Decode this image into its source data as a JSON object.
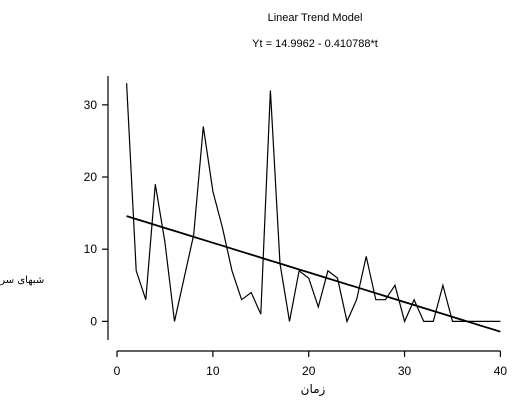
{
  "chart_data": {
    "type": "line",
    "title": "Linear Trend Model",
    "subtitle": "Yt = 14.9962 - 0.410788*t",
    "xlabel": "زمان",
    "ylabel": "شبهای سرد",
    "xlim": [
      0,
      41
    ],
    "ylim": [
      -3,
      34
    ],
    "xticks": [
      0,
      10,
      20,
      30,
      40
    ],
    "yticks": [
      0,
      10,
      20,
      30
    ],
    "grid": false,
    "legend": "none",
    "trend": {
      "intercept": 14.9962,
      "slope": -0.410788
    },
    "series": [
      {
        "x": [
          1,
          2,
          3,
          4,
          5,
          6,
          7,
          8,
          9,
          10,
          11,
          12,
          13,
          14,
          15,
          16,
          17,
          18,
          19,
          20,
          21,
          22,
          23,
          24,
          25,
          26,
          27,
          28,
          29,
          30,
          31,
          32,
          33,
          34,
          35,
          36,
          37,
          38,
          39,
          40
        ],
        "values": [
          33,
          7,
          3,
          19,
          11,
          0,
          6,
          12,
          27,
          18,
          13,
          7,
          3,
          4,
          1,
          32,
          8,
          0,
          7,
          6,
          2,
          7,
          6,
          0,
          3,
          9,
          3,
          3,
          5,
          0,
          3,
          0,
          0,
          5,
          0,
          0,
          0,
          0,
          0,
          0
        ]
      }
    ]
  }
}
